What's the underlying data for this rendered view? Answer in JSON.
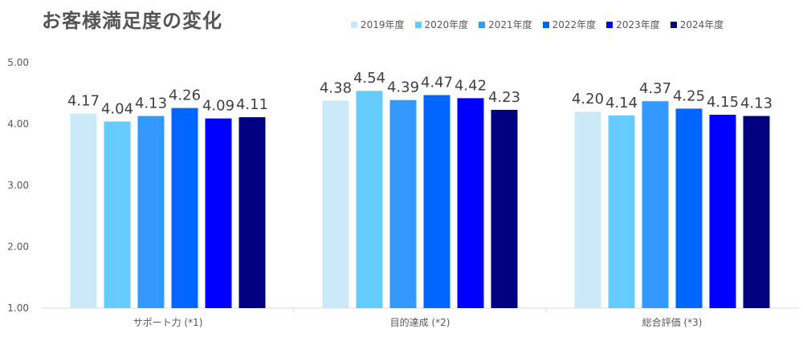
{
  "title": "お客様満足度の変化",
  "chart_data": {
    "type": "bar",
    "title": "お客様満足度の変化",
    "categories": [
      "サポート力 (*1)",
      "目的達成 (*2)",
      "総合評価 (*3)"
    ],
    "ylim": [
      1.0,
      5.0
    ],
    "yticks": [
      "1.00",
      "2.00",
      "3.00",
      "4.00",
      "5.00"
    ],
    "grid": false,
    "legend_position": "top-right",
    "series": [
      {
        "name": "2019年度",
        "color": "#CCE9FA",
        "values": [
          4.17,
          4.38,
          4.2
        ]
      },
      {
        "name": "2020年度",
        "color": "#66CCFF",
        "values": [
          4.04,
          4.54,
          4.14
        ]
      },
      {
        "name": "2021年度",
        "color": "#3399FF",
        "values": [
          4.13,
          4.39,
          4.37
        ]
      },
      {
        "name": "2022年度",
        "color": "#0066FF",
        "values": [
          4.26,
          4.47,
          4.25
        ]
      },
      {
        "name": "2023年度",
        "color": "#0000FF",
        "values": [
          4.09,
          4.42,
          4.15
        ]
      },
      {
        "name": "2024年度",
        "color": "#000080",
        "values": [
          4.11,
          4.23,
          4.13
        ]
      }
    ],
    "data_labels": [
      [
        "4.17",
        "4.04",
        "4.13",
        "4.26",
        "4.09",
        "4.11"
      ],
      [
        "4.38",
        "4.54",
        "4.39",
        "4.47",
        "4.42",
        "4.23"
      ],
      [
        "4.20",
        "4.14",
        "4.37",
        "4.25",
        "4.15",
        "4.13"
      ]
    ]
  }
}
